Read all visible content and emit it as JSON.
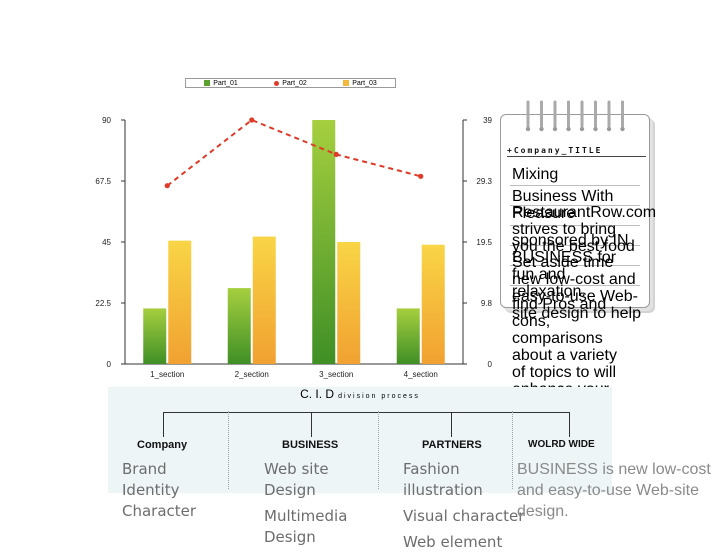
{
  "chart_data": {
    "type": "bar",
    "categories": [
      "1_section",
      "2_section",
      "3_section",
      "4_section"
    ],
    "series": [
      {
        "name": "Part_01",
        "kind": "bar",
        "axis": "left",
        "color": "#5aa02c",
        "values": [
          20.5,
          28,
          90,
          20.5
        ]
      },
      {
        "name": "Part_02",
        "kind": "line",
        "axis": "right",
        "color": "#e03a28",
        "values": [
          28.5,
          39,
          33.5,
          30
        ]
      },
      {
        "name": "Part_03",
        "kind": "bar",
        "axis": "left",
        "color": "#f5b83a",
        "values": [
          45.5,
          47,
          45,
          44
        ]
      }
    ],
    "left_ticks": [
      "0",
      "22.5",
      "45",
      "67.5",
      "90"
    ],
    "right_ticks": [
      "0",
      "9.8",
      "19.5",
      "29.3",
      "39"
    ],
    "ylim_left": [
      0,
      90
    ],
    "ylim_right": [
      0,
      39
    ],
    "legend_position": "top",
    "grid": false
  },
  "note": {
    "tag": "+Company_TITLE",
    "lines": [
      "Mixing",
      "Business With Pleasure",
      "RestaurantRow.com strives to bring you the best food",
      "sponsored by IN BUSINESS for fun and relaxation.",
      "Set aside time new low-cost and easy-to-use Web-site design to help",
      "find Pros and cons, comparisons about a variety of topics to will enhance your dining experience. Over time, we will be adding."
    ]
  },
  "process": {
    "title": "C. I. D",
    "subtitle": "division process",
    "columns": [
      {
        "tag": "Company",
        "color": "#f2c53d",
        "items": [
          "Brand Identity Character"
        ]
      },
      {
        "tag": "BUSINESS",
        "color": "#9ac43c",
        "items": [
          "Web site Design",
          "Multimedia Design"
        ]
      },
      {
        "tag": "PARTNERS",
        "color": "#6fd0cf",
        "items": [
          "Fashion illustration",
          "Visual character",
          "Web element"
        ]
      },
      {
        "tag": "WOLRD WIDE",
        "color": "#a9c7ee",
        "items": []
      }
    ],
    "description": "BUSINESS is new low-cost and easy-to-use Web-site design."
  }
}
